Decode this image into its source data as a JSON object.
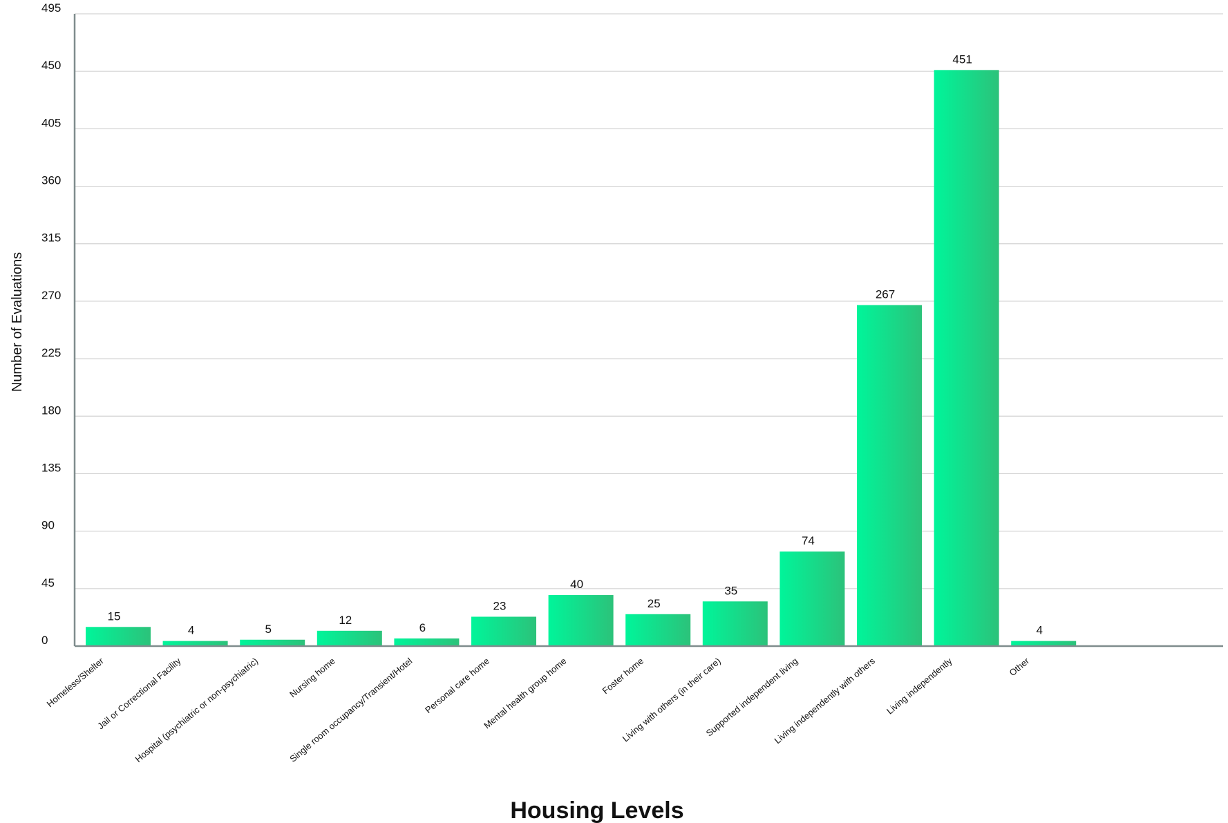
{
  "chart_data": {
    "type": "bar",
    "xlabel": "Housing Levels",
    "ylabel": "Number of Evaluations",
    "ylim": [
      0,
      495
    ],
    "yticks": [
      0,
      45,
      90,
      135,
      180,
      225,
      270,
      315,
      360,
      405,
      450,
      495
    ],
    "grid": true,
    "categories": [
      "Homeless/Shelter",
      "Jail or Correctional Facility",
      "Hospital (psychiatric or non-psychiatric)",
      "Nursing home",
      "Single room occupancy/Transient/Hotel",
      "Personal care home",
      "Mental health group home",
      "Foster home",
      "Living with others (in their care)",
      "Supported independent living",
      "Living independently with others",
      "Living independently",
      "Other"
    ],
    "values": [
      15,
      4,
      5,
      12,
      6,
      23,
      40,
      25,
      35,
      74,
      267,
      451,
      4
    ],
    "colors": {
      "bar_light": "#00f59a",
      "bar_dark": "#2cc27a",
      "axis": "#7f8c8d",
      "grid": "#d3d3d3"
    }
  }
}
